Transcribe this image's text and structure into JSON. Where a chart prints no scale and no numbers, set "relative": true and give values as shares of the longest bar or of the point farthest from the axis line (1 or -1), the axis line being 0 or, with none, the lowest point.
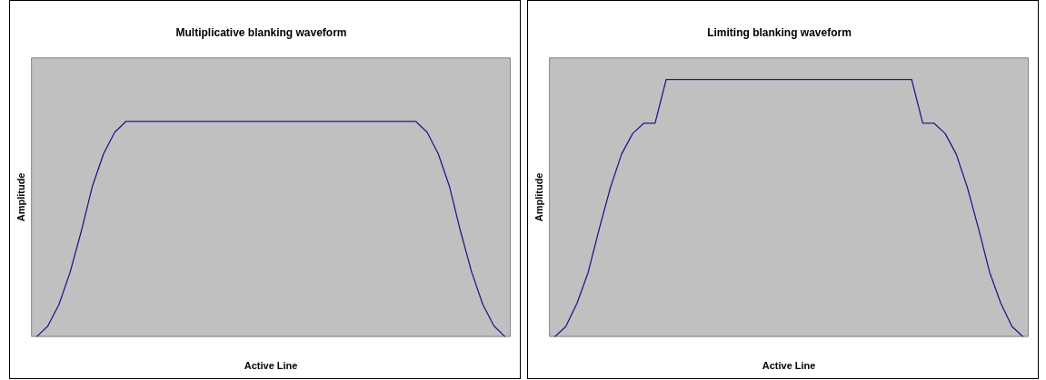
{
  "chart_data": [
    {
      "type": "line",
      "title": "Multiplicative blanking waveform",
      "xlabel": "Active Line",
      "ylabel": "Amplitude",
      "relative": true,
      "grid": false,
      "legend": false,
      "marker": "none",
      "line_style": "solid",
      "categories": [
        null,
        null,
        null,
        null,
        null,
        null,
        null,
        null,
        null,
        null,
        null,
        null,
        null,
        null,
        null,
        null,
        null,
        null,
        null,
        null,
        null,
        null,
        null,
        null,
        null,
        null,
        null,
        null,
        null,
        null,
        null,
        null,
        null,
        null,
        null,
        null,
        null,
        null,
        null,
        null,
        null,
        null,
        null
      ],
      "series": [
        {
          "color": "#1c1c8c",
          "values": [
            0,
            0.05,
            0.15,
            0.3,
            0.49,
            0.7,
            0.85,
            0.95,
            1,
            1,
            1,
            1,
            1,
            1,
            1,
            1,
            1,
            1,
            1,
            1,
            1,
            1,
            1,
            1,
            1,
            1,
            1,
            1,
            1,
            1,
            1,
            1,
            1,
            1,
            1,
            0.95,
            0.85,
            0.7,
            0.49,
            0.3,
            0.15,
            0.05,
            0
          ]
        }
      ]
    },
    {
      "type": "line",
      "title": "Limiting blanking waveform",
      "xlabel": "Active Line",
      "ylabel": "Amplitude",
      "relative": true,
      "grid": false,
      "legend": false,
      "marker": "none",
      "line_style": "solid",
      "categories": [
        null,
        null,
        null,
        null,
        null,
        null,
        null,
        null,
        null,
        null,
        null,
        null,
        null,
        null,
        null,
        null,
        null,
        null,
        null,
        null,
        null,
        null,
        null,
        null,
        null,
        null,
        null,
        null,
        null,
        null,
        null,
        null,
        null,
        null,
        null,
        null,
        null,
        null,
        null,
        null,
        null,
        null,
        null
      ],
      "series": [
        {
          "color": "#1c1c8c",
          "values": [
            0,
            0.04,
            0.13,
            0.25,
            0.42,
            0.58,
            0.71,
            0.79,
            0.83,
            0.83,
            1,
            1,
            1,
            1,
            1,
            1,
            1,
            1,
            1,
            1,
            1,
            1,
            1,
            1,
            1,
            1,
            1,
            1,
            1,
            1,
            1,
            1,
            1,
            0.83,
            0.83,
            0.79,
            0.71,
            0.58,
            0.42,
            0.25,
            0.13,
            0.04,
            0
          ]
        }
      ]
    }
  ]
}
